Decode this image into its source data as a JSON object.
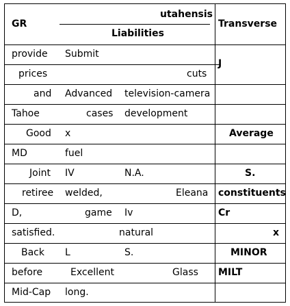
{
  "header": {
    "gr": "GR",
    "utahensis": "utahensis",
    "liabilities": "Liabilities",
    "transverse": "Transverse"
  },
  "rows": [
    {
      "c1": "provide",
      "c2": "Submit",
      "c3": "",
      "c4": ""
    },
    {
      "c1": "prices",
      "c2": "",
      "c3": "cuts",
      "c4": "J"
    },
    {
      "c1": "and",
      "c2": "Advanced",
      "c3": "television-camera",
      "c4": ""
    },
    {
      "c1": "Tahoe",
      "c2": "cases",
      "c3": "development",
      "c4": ""
    },
    {
      "c1": "Good",
      "c2": "x",
      "c3": "",
      "c4": "Average"
    },
    {
      "c1": "MD",
      "c2": "fuel",
      "c3": "",
      "c4": ""
    },
    {
      "c1": "Joint",
      "c2": "IV",
      "c3": "N.A.",
      "c4": "S."
    },
    {
      "c1": "retiree",
      "c2": "welded,",
      "c3": "Eleana",
      "c4": "constituents"
    },
    {
      "c1": "D,",
      "c2": "game",
      "c3": "Iv",
      "c4": "Cr"
    },
    {
      "c1": "satisfied.",
      "c2": "natural",
      "c3": "",
      "c4": "x"
    },
    {
      "c1": "Back",
      "c2": "L",
      "c3": "S.",
      "c4": "MINOR"
    },
    {
      "c1": "before",
      "c2": "Excellent",
      "c3": "Glass",
      "c4": "MILT"
    },
    {
      "c1": "Mid-Cap",
      "c2": "long.",
      "c3": "",
      "c4": ""
    }
  ]
}
